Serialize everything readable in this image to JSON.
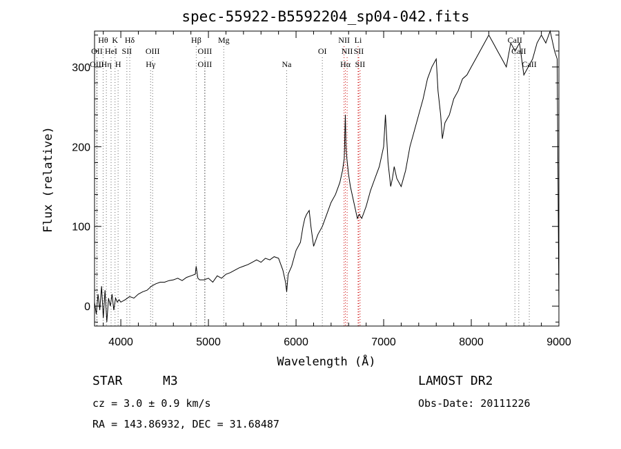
{
  "chart_data": {
    "type": "line",
    "title": "spec-55922-B5592204_sp04-042.fits",
    "xlabel": "Wavelength (Å)",
    "ylabel": "Flux (relative)",
    "xlim": [
      3700,
      9000
    ],
    "ylim": [
      -25,
      345
    ],
    "xticks": [
      4000,
      5000,
      6000,
      7000,
      8000,
      9000
    ],
    "yticks": [
      0,
      100,
      200,
      300
    ],
    "series": [
      {
        "x": [
          3700,
          3720,
          3740,
          3760,
          3780,
          3800,
          3820,
          3840,
          3860,
          3880,
          3900,
          3920,
          3940,
          3960,
          3980,
          4000,
          4050,
          4100,
          4150,
          4200,
          4250,
          4300,
          4350,
          4400,
          4450,
          4500,
          4550,
          4600,
          4650,
          4700,
          4750,
          4800,
          4850,
          4860,
          4880,
          4900,
          4950,
          5000,
          5050,
          5100,
          5150,
          5200,
          5250,
          5300,
          5350,
          5400,
          5450,
          5500,
          5550,
          5600,
          5650,
          5700,
          5750,
          5800,
          5850,
          5880,
          5893,
          5910,
          5950,
          6000,
          6050,
          6080,
          6100,
          6120,
          6150,
          6170,
          6200,
          6250,
          6300,
          6350,
          6400,
          6450,
          6500,
          6530,
          6550,
          6563,
          6570,
          6580,
          6600,
          6620,
          6650,
          6680,
          6700,
          6720,
          6750,
          6800,
          6850,
          6900,
          6950,
          7000,
          7020,
          7050,
          7080,
          7100,
          7120,
          7150,
          7200,
          7250,
          7300,
          7350,
          7400,
          7450,
          7500,
          7550,
          7600,
          7620,
          7650,
          7670,
          7700,
          7750,
          7800,
          7850,
          7900,
          7950,
          8000,
          8050,
          8100,
          8150,
          8200,
          8250,
          8300,
          8350,
          8400,
          8450,
          8500,
          8550,
          8600,
          8650,
          8700,
          8750,
          8800,
          8850,
          8900,
          8950,
          8980,
          9000
        ],
        "y": [
          5,
          -10,
          15,
          -5,
          25,
          -15,
          20,
          -20,
          10,
          0,
          15,
          -5,
          10,
          5,
          8,
          5,
          8,
          12,
          10,
          15,
          18,
          20,
          25,
          28,
          30,
          30,
          32,
          33,
          35,
          32,
          36,
          38,
          40,
          50,
          35,
          33,
          33,
          35,
          30,
          38,
          35,
          40,
          42,
          45,
          48,
          50,
          52,
          55,
          58,
          55,
          60,
          58,
          62,
          60,
          45,
          30,
          18,
          40,
          50,
          70,
          80,
          100,
          110,
          115,
          120,
          100,
          75,
          90,
          100,
          115,
          130,
          140,
          155,
          170,
          185,
          240,
          200,
          185,
          165,
          150,
          135,
          120,
          110,
          115,
          110,
          125,
          145,
          160,
          175,
          200,
          240,
          180,
          150,
          160,
          175,
          160,
          150,
          170,
          200,
          220,
          240,
          260,
          285,
          300,
          310,
          270,
          240,
          210,
          230,
          240,
          260,
          270,
          285,
          290,
          300,
          310,
          320,
          330,
          340,
          330,
          320,
          310,
          300,
          330,
          320,
          330,
          290,
          300,
          310,
          330,
          340,
          330,
          345,
          320,
          310,
          0
        ]
      }
    ],
    "spectral_lines": [
      {
        "name": "Hθ",
        "wavelength": 3798,
        "row": 1
      },
      {
        "name": "OII",
        "wavelength": 3727,
        "row": 2
      },
      {
        "name": "OIII",
        "wavelength": 3727,
        "row": 3
      },
      {
        "name": "K",
        "wavelength": 3934,
        "row": 1
      },
      {
        "name": "HeI",
        "wavelength": 3889,
        "row": 2
      },
      {
        "name": "Hη",
        "wavelength": 3835,
        "row": 3
      },
      {
        "name": "Hδ",
        "wavelength": 4102,
        "row": 1
      },
      {
        "name": "SII",
        "wavelength": 4069,
        "row": 2
      },
      {
        "name": "H",
        "wavelength": 3969,
        "row": 3
      },
      {
        "name": "OIII",
        "wavelength": 4363,
        "row": 2
      },
      {
        "name": "Hγ",
        "wavelength": 4340,
        "row": 3
      },
      {
        "name": "Hβ",
        "wavelength": 4861,
        "row": 1
      },
      {
        "name": "OIII",
        "wavelength": 4959,
        "row": 2
      },
      {
        "name": "OIII",
        "wavelength": 4959,
        "row": 3
      },
      {
        "name": "Mg",
        "wavelength": 5175,
        "row": 1
      },
      {
        "name": "Na",
        "wavelength": 5893,
        "row": 3
      },
      {
        "name": "OI",
        "wavelength": 6300,
        "row": 2
      },
      {
        "name": "NII",
        "wavelength": 6548,
        "row": 1
      },
      {
        "name": "NII",
        "wavelength": 6583,
        "row": 2
      },
      {
        "name": "Hα",
        "wavelength": 6563,
        "row": 3
      },
      {
        "name": "Li",
        "wavelength": 6708,
        "row": 1
      },
      {
        "name": "SII",
        "wavelength": 6716,
        "row": 2
      },
      {
        "name": "SII",
        "wavelength": 6731,
        "row": 3
      },
      {
        "name": "CaII",
        "wavelength": 8498,
        "row": 1
      },
      {
        "name": "CaII",
        "wavelength": 8542,
        "row": 2
      },
      {
        "name": "CaII",
        "wavelength": 8662,
        "row": 3
      }
    ],
    "line_colors": {
      "emission": "#cc0000",
      "absorption": "#666666"
    },
    "grid": false
  },
  "info": {
    "object_class": "STAR",
    "subclass": "M3",
    "survey": "LAMOST DR2",
    "cz": "cz = 3.0 ± 0.9 km/s",
    "obs_date": "Obs-Date: 20111226",
    "coords": "RA = 143.86932, DEC =  31.68487"
  }
}
